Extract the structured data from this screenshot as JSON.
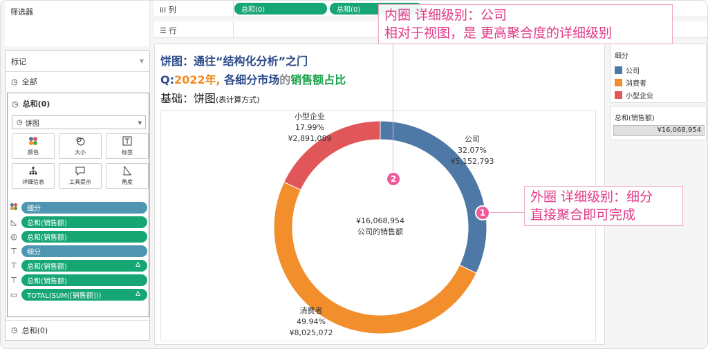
{
  "filters": {
    "title": "筛选器"
  },
  "marks": {
    "title": "标记",
    "all_label": "全部",
    "sub_title": "总和(0)",
    "mark_type": "饼图",
    "buttons": [
      {
        "label": "颜色",
        "icon": "color-icon"
      },
      {
        "label": "大小",
        "icon": "size-icon"
      },
      {
        "label": "标签",
        "icon": "label-icon"
      },
      {
        "label": "详细信息",
        "icon": "detail-icon"
      },
      {
        "label": "工具提示",
        "icon": "tooltip-icon"
      },
      {
        "label": "角度",
        "icon": "angle-icon"
      }
    ],
    "pills": [
      {
        "label": "细分",
        "color": "blue",
        "icon": "color-icon",
        "delta": ""
      },
      {
        "label": "总和(销售额)",
        "color": "green",
        "icon": "angle-icon",
        "delta": ""
      },
      {
        "label": "总和(销售额)",
        "color": "green",
        "icon": "size-icon",
        "delta": ""
      },
      {
        "label": "细分",
        "color": "blue",
        "icon": "label-icon",
        "delta": ""
      },
      {
        "label": "总和(销售额)",
        "color": "green",
        "icon": "label-icon",
        "delta": "Δ"
      },
      {
        "label": "总和(销售额)",
        "color": "green",
        "icon": "label-icon",
        "delta": ""
      },
      {
        "label": "TOTAL(SUM([销售额]))",
        "color": "green",
        "icon": "tooltip-icon",
        "delta": "Δ"
      }
    ],
    "bottom_label": "总和(0)"
  },
  "shelves": {
    "columns_label": "列",
    "rows_label": "行",
    "column_pills": [
      "总和(0)",
      "总和(0)"
    ]
  },
  "view": {
    "title1": "饼图：通往“结构化分析”之门",
    "title2_prefix": "Q:",
    "title2_year": "2022年,",
    "title2_mid": " 各细分市场",
    "title2_end": "的",
    "title2_highlight": "销售额占比",
    "title3": "基础：饼图",
    "title3_small": "(表计算方式)"
  },
  "legend": {
    "title": "细分",
    "items": [
      {
        "label": "公司",
        "color": "#4e79a7"
      },
      {
        "label": "消费者",
        "color": "#f28e2b"
      },
      {
        "label": "小型企业",
        "color": "#e15759"
      }
    ]
  },
  "sum_panel": {
    "title": "总和(销售额)",
    "value": "¥16,068,954"
  },
  "chart_data": {
    "type": "pie",
    "donut": true,
    "series": [
      {
        "name": "公司",
        "value": 5152793,
        "percent": "32.07%",
        "value_label": "¥5,152,793",
        "color": "#4e79a7"
      },
      {
        "name": "消费者",
        "value": 8025072,
        "percent": "49.94%",
        "value_label": "¥8,025,072",
        "color": "#f28e2b"
      },
      {
        "name": "小型企业",
        "value": 2891089,
        "percent": "17.99%",
        "value_label": "¥2,891,089",
        "color": "#e15759"
      }
    ],
    "center_value": "¥16,068,954",
    "center_label": "公司的销售额"
  },
  "annotations": {
    "inner_line1": "内圈 详细级别：公司",
    "inner_line2": "相对于视图，是 更高聚合度的详细级别",
    "outer_line1": "外圈 详细级别：细分",
    "outer_line2": "直接聚合即可完成",
    "badge1": "1",
    "badge2": "2"
  }
}
